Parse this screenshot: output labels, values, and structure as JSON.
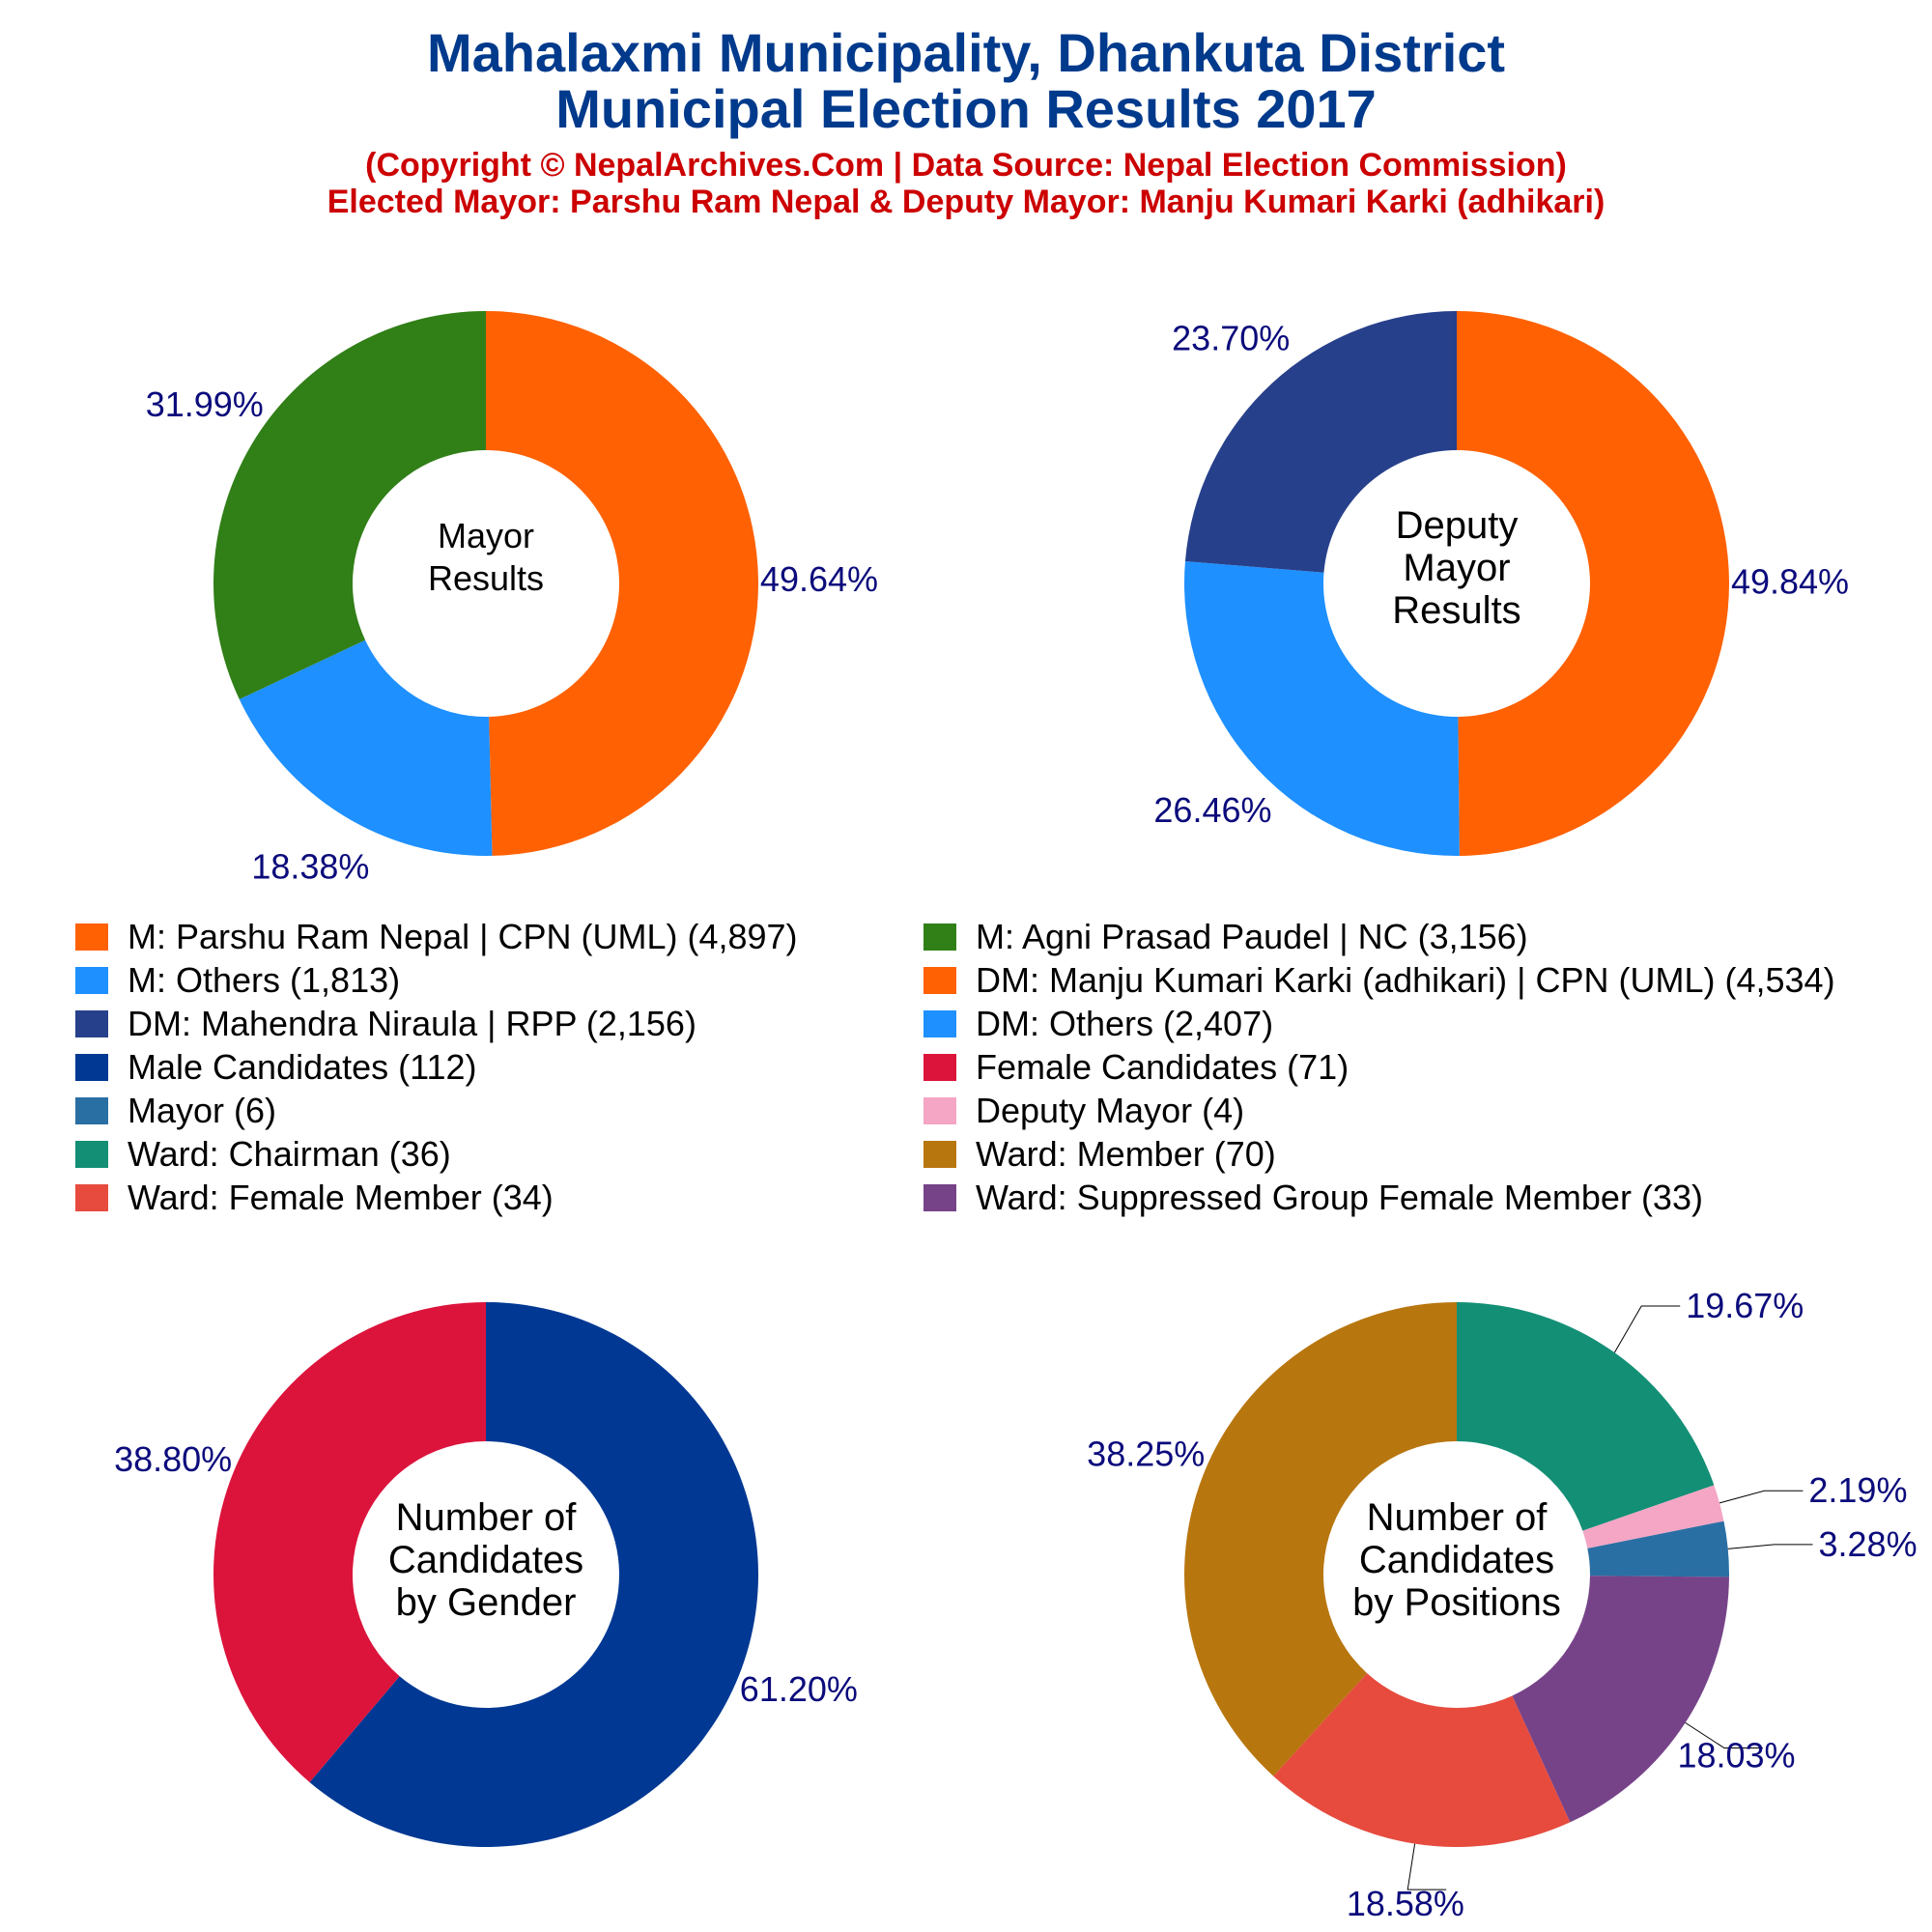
{
  "title_line1": "Mahalaxmi Municipality, Dhankuta District",
  "title_line2": "Municipal Election Results 2017",
  "subtitle_line1": "(Copyright © NepalArchives.Com | Data Source: Nepal Election Commission)",
  "subtitle_line2": "Elected Mayor: Parshu Ram Nepal & Deputy Mayor: Manju Kumari Karki (adhikari)",
  "legend": [
    {
      "label": "M: Parshu Ram Nepal | CPN (UML) (4,897)",
      "color": "#FF6103"
    },
    {
      "label": "M: Agni Prasad Paudel | NC (3,156)",
      "color": "#317F17"
    },
    {
      "label": "M: Others (1,813)",
      "color": "#1E90FF"
    },
    {
      "label": "DM: Manju Kumari Karki (adhikari) | CPN (UML) (4,534)",
      "color": "#FF6103"
    },
    {
      "label": "DM: Mahendra Niraula | RPP (2,156)",
      "color": "#27408B"
    },
    {
      "label": "DM: Others (2,407)",
      "color": "#1E90FF"
    },
    {
      "label": "Male Candidates (112)",
      "color": "#003893"
    },
    {
      "label": "Female Candidates (71)",
      "color": "#DC143C"
    },
    {
      "label": "Mayor (6)",
      "color": "#2A6FA3"
    },
    {
      "label": "Deputy Mayor (4)",
      "color": "#F4A6C4"
    },
    {
      "label": "Ward: Chairman (36)",
      "color": "#138F76"
    },
    {
      "label": "Ward: Member (70)",
      "color": "#B8760F"
    },
    {
      "label": "Ward: Female Member (34)",
      "color": "#E64B3E"
    },
    {
      "label": "Ward: Suppressed Group Female Member (33)",
      "color": "#764389"
    }
  ],
  "chart_data": [
    {
      "type": "pie",
      "center_label": [
        "Mayor",
        "Results"
      ],
      "slices": [
        {
          "name": "M: Parshu Ram Nepal | CPN (UML)",
          "value": 4897,
          "label": "49.64%",
          "color": "#FF6103"
        },
        {
          "name": "M: Others",
          "value": 1813,
          "label": "18.38%",
          "color": "#1E90FF"
        },
        {
          "name": "M: Agni Prasad Paudel | NC",
          "value": 3156,
          "label": "31.99%",
          "color": "#317F17"
        }
      ]
    },
    {
      "type": "pie",
      "center_label": [
        "Deputy",
        "Mayor",
        "Results"
      ],
      "slices": [
        {
          "name": "DM: Manju Kumari Karki (adhikari) | CPN (UML)",
          "value": 4534,
          "label": "49.84%",
          "color": "#FF6103"
        },
        {
          "name": "DM: Others",
          "value": 2407,
          "label": "26.46%",
          "color": "#1E90FF"
        },
        {
          "name": "DM: Mahendra Niraula | RPP",
          "value": 2156,
          "label": "23.70%",
          "color": "#27408B"
        }
      ]
    },
    {
      "type": "pie",
      "center_label": [
        "Number of",
        "Candidates",
        "by Gender"
      ],
      "slices": [
        {
          "name": "Male Candidates",
          "value": 112,
          "label": "61.20%",
          "color": "#003893"
        },
        {
          "name": "Female Candidates",
          "value": 71,
          "label": "38.80%",
          "color": "#DC143C"
        }
      ]
    },
    {
      "type": "pie",
      "center_label": [
        "Number of",
        "Candidates",
        "by Positions"
      ],
      "slices": [
        {
          "name": "Ward: Chairman",
          "value": 36,
          "label": "19.67%",
          "color": "#138F76"
        },
        {
          "name": "Deputy Mayor",
          "value": 4,
          "label": "2.19%",
          "color": "#F4A6C4"
        },
        {
          "name": "Mayor",
          "value": 6,
          "label": "3.28%",
          "color": "#2A6FA3"
        },
        {
          "name": "Ward: Suppressed Group Female Member",
          "value": 33,
          "label": "18.03%",
          "color": "#764389"
        },
        {
          "name": "Ward: Female Member",
          "value": 34,
          "label": "18.58%",
          "color": "#E64B3E"
        },
        {
          "name": "Ward: Member",
          "value": 70,
          "label": "38.25%",
          "color": "#B8760F"
        }
      ]
    }
  ]
}
